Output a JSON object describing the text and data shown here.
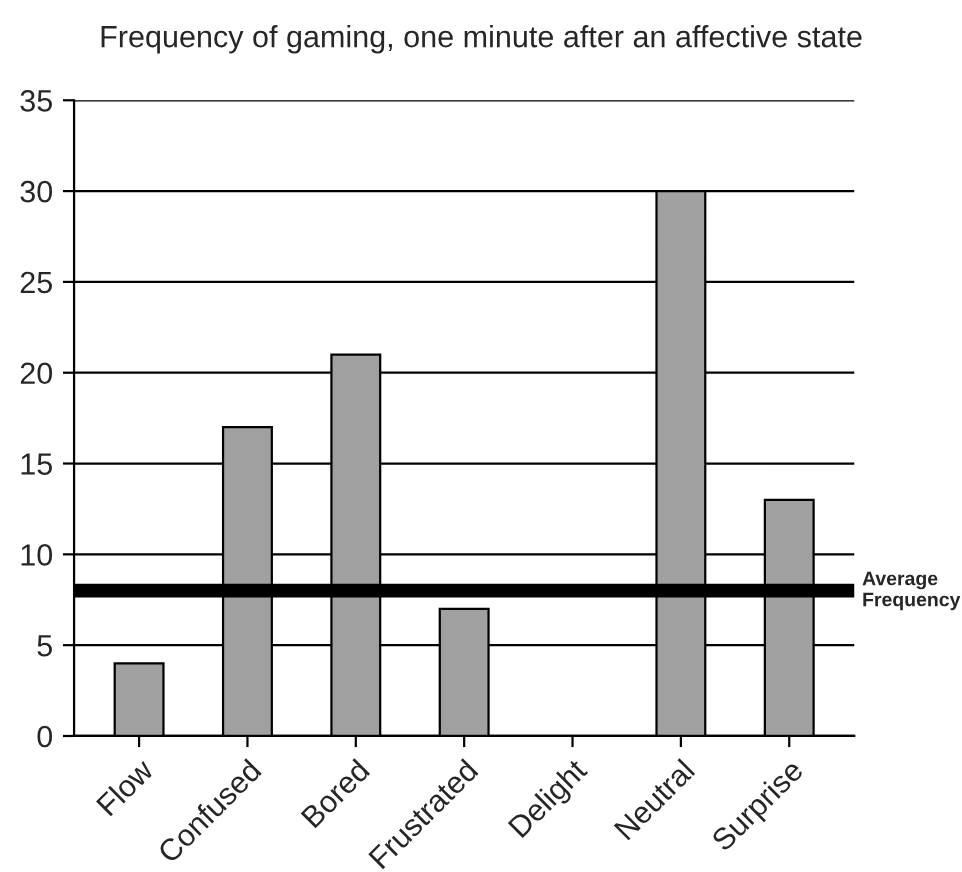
{
  "chart_data": {
    "type": "bar",
    "title": "Frequency of gaming, one minute after an affective state",
    "categories": [
      "Flow",
      "Confused",
      "Bored",
      "Frustrated",
      "Delight",
      "Neutral",
      "Surprise"
    ],
    "values": [
      4,
      17,
      21,
      7,
      0,
      30,
      13
    ],
    "color": "#a0a0a0",
    "ylim": [
      0,
      35
    ],
    "yticks": [
      0,
      5,
      10,
      15,
      20,
      25,
      30,
      35
    ],
    "grid": "y",
    "ref_lines": [
      {
        "axis": "y",
        "value": 8,
        "label": "Average\nFrequency",
        "color": "#000000"
      }
    ]
  }
}
